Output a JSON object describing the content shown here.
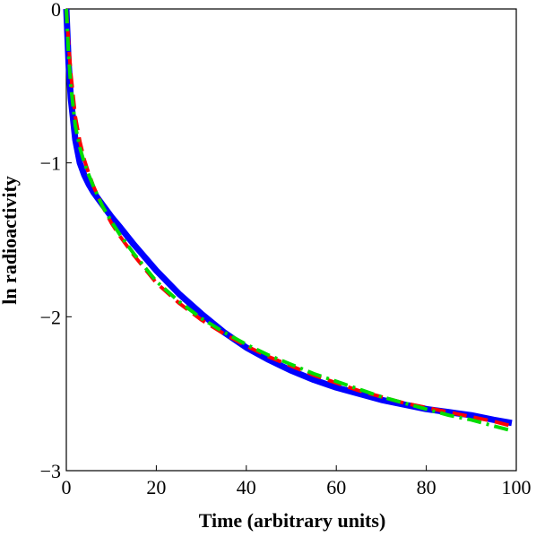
{
  "chart_data": {
    "type": "line",
    "title": "",
    "xlabel": "Time (arbitrary units)",
    "ylabel": "ln radioactivity",
    "xlim": [
      0,
      100
    ],
    "ylim": [
      -3,
      0
    ],
    "xticks": [
      0,
      20,
      40,
      60,
      80,
      100
    ],
    "xtick_labels": [
      "0",
      "20",
      "40",
      "60",
      "80",
      "100"
    ],
    "yticks": [
      0,
      -1,
      -2,
      -3
    ],
    "ytick_labels": [
      "0",
      "−1",
      "−2",
      "−3"
    ],
    "grid": false,
    "legend": "none",
    "series": [
      {
        "color": "#0000ff",
        "style": "solid",
        "x": [
          0,
          0.5,
          1,
          2,
          3,
          4,
          5,
          6,
          8,
          10,
          12,
          15,
          20,
          25,
          30,
          35,
          40,
          45,
          50,
          55,
          60,
          65,
          70,
          75,
          80,
          85,
          90,
          95,
          99
        ],
        "y": [
          0,
          -0.35,
          -0.58,
          -0.85,
          -1.0,
          -1.08,
          -1.14,
          -1.19,
          -1.27,
          -1.35,
          -1.42,
          -1.53,
          -1.7,
          -1.85,
          -1.98,
          -2.1,
          -2.2,
          -2.28,
          -2.35,
          -2.41,
          -2.46,
          -2.5,
          -2.54,
          -2.57,
          -2.6,
          -2.62,
          -2.64,
          -2.67,
          -2.69
        ]
      },
      {
        "color": "#ff0000",
        "style": "dash",
        "x": [
          0,
          0.5,
          1,
          2,
          3,
          4,
          5,
          6,
          8,
          10,
          12,
          15,
          20,
          25,
          30,
          35,
          40,
          45,
          50,
          55,
          60,
          65,
          70,
          75,
          80,
          85,
          90,
          95,
          99
        ],
        "y": [
          0,
          -0.22,
          -0.42,
          -0.7,
          -0.86,
          -0.98,
          -1.07,
          -1.15,
          -1.28,
          -1.39,
          -1.48,
          -1.6,
          -1.78,
          -1.91,
          -2.02,
          -2.11,
          -2.19,
          -2.26,
          -2.32,
          -2.38,
          -2.43,
          -2.48,
          -2.52,
          -2.56,
          -2.59,
          -2.62,
          -2.65,
          -2.68,
          -2.71
        ]
      },
      {
        "color": "#00dd00",
        "style": "dashdot",
        "x": [
          0,
          0.5,
          1,
          2,
          3,
          4,
          5,
          6,
          8,
          10,
          12,
          15,
          20,
          25,
          30,
          35,
          40,
          45,
          50,
          55,
          60,
          65,
          70,
          75,
          80,
          85,
          90,
          95,
          99
        ],
        "y": [
          0,
          -0.3,
          -0.5,
          -0.76,
          -0.9,
          -1.0,
          -1.08,
          -1.15,
          -1.28,
          -1.38,
          -1.47,
          -1.59,
          -1.77,
          -1.9,
          -2.01,
          -2.1,
          -2.18,
          -2.25,
          -2.31,
          -2.37,
          -2.42,
          -2.47,
          -2.52,
          -2.56,
          -2.6,
          -2.64,
          -2.67,
          -2.71,
          -2.74
        ]
      }
    ]
  }
}
